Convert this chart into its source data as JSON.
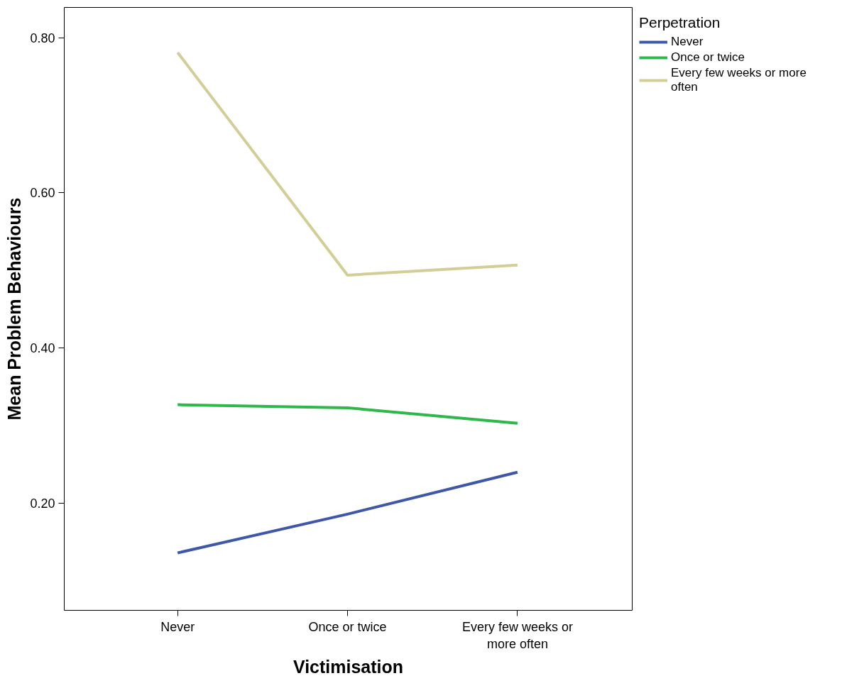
{
  "chart_data": {
    "type": "line",
    "xlabel": "Victimisation",
    "ylabel": "Mean Problem Behaviours",
    "legend_title": "Perpetration",
    "legend": "top right",
    "grid": false,
    "marker": "none",
    "line_style": "solid",
    "categories": [
      "Never",
      "Once or twice",
      "Every few weeks or more often"
    ],
    "ylim": [
      0.062,
      0.839
    ],
    "yticks": [
      {
        "value": 0.2,
        "label": "0.20"
      },
      {
        "value": 0.4,
        "label": "0.40"
      },
      {
        "value": 0.6,
        "label": "0.60"
      },
      {
        "value": 0.8,
        "label": "0.80"
      }
    ],
    "series": [
      {
        "name": "Never",
        "color": "#3f57a8",
        "values": [
          0.136,
          0.186,
          0.24
        ]
      },
      {
        "name": "Once or twice",
        "color": "#2eb84a",
        "values": [
          0.327,
          0.323,
          0.303
        ]
      },
      {
        "name": "Every few weeks or more often",
        "color": "#d3cd98",
        "values": [
          0.781,
          0.494,
          0.507
        ]
      }
    ]
  }
}
